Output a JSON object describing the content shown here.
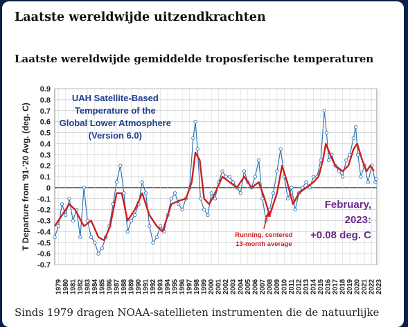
{
  "article": {
    "heading": "Laatste wereldwijde uitzendkrachten",
    "subheading": "Laatste wereldwijde gemiddelde troposferische temperaturen",
    "body_text": "Sinds 1979 dragen NOAA-satellieten instrumenten die de natuurlijke"
  },
  "chart_data": {
    "type": "line",
    "title": "UAH Satellite-Based Temperature of the Global Lower Atmosphere (Version 6.0)",
    "title_lines": [
      "UAH Satellite-Based",
      "Temperature of the",
      "Global Lower Atmosphere",
      "(Version 6.0)"
    ],
    "ylabel": "T Departure from '91-'20 Avg. (deg. C)",
    "xlabel": "",
    "ylim": [
      -0.7,
      0.9
    ],
    "yticks": [
      "0.9",
      "0.8",
      "0.7",
      "0.6",
      "0.5",
      "0.4",
      "0.3",
      "0.2",
      "0.1",
      "0",
      "-0.1",
      "-0.2",
      "-0.3",
      "-0.4",
      "-0.5",
      "-0.6",
      "-0.7"
    ],
    "xlim": [
      1979,
      2023.2
    ],
    "xticks": [
      "1979",
      "1980",
      "1981",
      "1982",
      "1983",
      "1984",
      "1985",
      "1986",
      "1987",
      "1988",
      "1989",
      "1990",
      "1991",
      "1992",
      "1993",
      "1994",
      "1995",
      "1996",
      "1997",
      "1998",
      "1999",
      "2000",
      "2001",
      "2002",
      "2003",
      "2004",
      "2005",
      "2006",
      "2007",
      "2008",
      "2009",
      "2010",
      "2011",
      "2012",
      "2013",
      "2014",
      "2015",
      "2016",
      "2017",
      "2018",
      "2019",
      "2020",
      "2021",
      "2022",
      "2023"
    ],
    "grid": true,
    "annotations": {
      "latest_lines": [
        "February,",
        "2023:",
        "+0.08 deg. C"
      ],
      "running_lines": [
        "Running, centered",
        "13-month average"
      ]
    },
    "colors": {
      "monthly": "#2e75b6",
      "running": "#cc1f1f",
      "title": "#1f3f8f",
      "latest": "#6a2a8c",
      "running_label": "#cc1f1f"
    },
    "series": [
      {
        "name": "Monthly",
        "x": [
          1979.0,
          1979.5,
          1980.0,
          1980.5,
          1981.0,
          1981.5,
          1982.0,
          1982.5,
          1983.0,
          1983.5,
          1984.0,
          1984.5,
          1985.0,
          1985.5,
          1986.0,
          1986.5,
          1987.0,
          1987.5,
          1988.0,
          1988.5,
          1989.0,
          1989.5,
          1990.0,
          1990.5,
          1991.0,
          1991.5,
          1992.0,
          1992.5,
          1993.0,
          1993.5,
          1994.0,
          1994.5,
          1995.0,
          1995.5,
          1996.0,
          1996.5,
          1997.0,
          1997.5,
          1998.0,
          1998.3,
          1998.6,
          1999.0,
          1999.5,
          2000.0,
          2000.5,
          2001.0,
          2001.5,
          2002.0,
          2002.5,
          2003.0,
          2003.5,
          2004.0,
          2004.5,
          2005.0,
          2005.5,
          2006.0,
          2006.5,
          2007.0,
          2007.5,
          2008.0,
          2008.5,
          2009.0,
          2009.5,
          2010.0,
          2010.5,
          2011.0,
          2011.5,
          2012.0,
          2012.5,
          2013.0,
          2013.5,
          2014.0,
          2014.5,
          2015.0,
          2015.5,
          2016.0,
          2016.3,
          2016.6,
          2017.0,
          2017.5,
          2018.0,
          2018.5,
          2019.0,
          2019.5,
          2020.0,
          2020.3,
          2020.6,
          2021.0,
          2021.5,
          2022.0,
          2022.5,
          2023.0,
          2023.1
        ],
        "values": [
          -0.45,
          -0.35,
          -0.15,
          -0.25,
          -0.1,
          -0.3,
          -0.2,
          -0.45,
          0.0,
          -0.3,
          -0.45,
          -0.5,
          -0.6,
          -0.55,
          -0.45,
          -0.35,
          -0.15,
          0.05,
          0.2,
          -0.05,
          -0.4,
          -0.3,
          -0.25,
          -0.15,
          0.05,
          -0.05,
          -0.35,
          -0.5,
          -0.45,
          -0.35,
          -0.4,
          -0.25,
          -0.1,
          -0.05,
          -0.15,
          -0.2,
          -0.1,
          0.0,
          0.45,
          0.6,
          0.35,
          -0.1,
          -0.2,
          -0.25,
          -0.05,
          -0.1,
          0.05,
          0.15,
          0.1,
          0.1,
          0.05,
          0.0,
          -0.05,
          0.15,
          0.05,
          0.0,
          0.1,
          0.25,
          -0.1,
          -0.3,
          -0.2,
          -0.05,
          0.15,
          0.35,
          0.1,
          -0.1,
          0.0,
          -0.2,
          -0.05,
          0.0,
          0.05,
          0.0,
          0.1,
          0.1,
          0.25,
          0.7,
          0.5,
          0.25,
          0.3,
          0.2,
          0.15,
          0.1,
          0.25,
          0.3,
          0.45,
          0.55,
          0.3,
          0.1,
          0.2,
          0.05,
          0.2,
          0.05,
          0.08
        ]
      },
      {
        "name": "Running, centered 13-month average",
        "x": [
          1979.0,
          1980.0,
          1981.0,
          1981.8,
          1983.0,
          1984.0,
          1985.0,
          1985.8,
          1986.6,
          1987.5,
          1988.2,
          1989.0,
          1990.0,
          1991.0,
          1992.0,
          1993.0,
          1993.8,
          1995.0,
          1996.0,
          1997.0,
          1997.8,
          1998.3,
          1998.9,
          1999.5,
          2000.2,
          2001.0,
          2002.0,
          2003.0,
          2004.0,
          2005.0,
          2006.0,
          2007.0,
          2007.8,
          2008.5,
          2009.5,
          2010.2,
          2010.9,
          2011.7,
          2012.5,
          2013.5,
          2014.5,
          2015.2,
          2015.8,
          2016.2,
          2016.8,
          2017.5,
          2018.5,
          2019.3,
          2020.0,
          2020.5,
          2021.2,
          2021.8,
          2022.3,
          2022.8
        ],
        "values": [
          -0.35,
          -0.25,
          -0.15,
          -0.2,
          -0.35,
          -0.3,
          -0.45,
          -0.48,
          -0.35,
          -0.05,
          -0.05,
          -0.3,
          -0.2,
          -0.05,
          -0.25,
          -0.35,
          -0.4,
          -0.15,
          -0.12,
          -0.1,
          0.05,
          0.32,
          0.25,
          -0.1,
          -0.15,
          -0.05,
          0.1,
          0.05,
          0.0,
          0.1,
          0.0,
          0.05,
          -0.1,
          -0.25,
          -0.05,
          0.2,
          0.05,
          -0.15,
          -0.05,
          0.0,
          0.05,
          0.1,
          0.25,
          0.4,
          0.3,
          0.2,
          0.15,
          0.2,
          0.35,
          0.4,
          0.25,
          0.15,
          0.2,
          0.15
        ]
      }
    ]
  }
}
